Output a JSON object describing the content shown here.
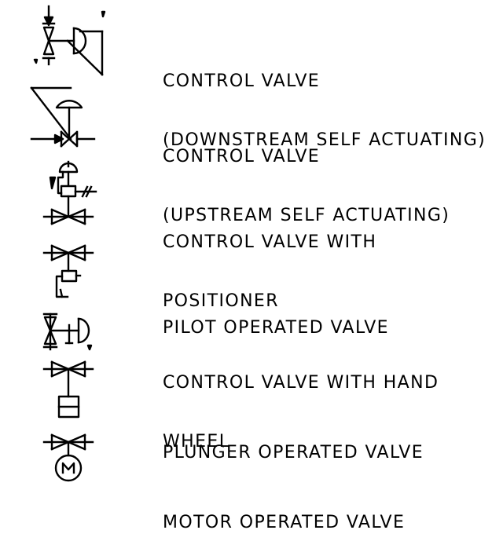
{
  "legend": [
    {
      "icon": "downstream-self-actuating-control-valve-icon",
      "lines": [
        "CONTROL VALVE",
        "(DOWNSTREAM SELF ACTUATING)"
      ]
    },
    {
      "icon": "upstream-self-actuating-control-valve-icon",
      "lines": [
        "CONTROL VALVE",
        "(UPSTREAM SELF ACTUATING)"
      ]
    },
    {
      "icon": "control-valve-with-positioner-icon",
      "lines": [
        "CONTROL VALVE WITH",
        "POSITIONER"
      ]
    },
    {
      "icon": "pilot-operated-valve-icon",
      "lines": [
        "PILOT OPERATED VALVE"
      ]
    },
    {
      "icon": "control-valve-with-hand-wheel-icon",
      "lines": [
        "CONTROL VALVE WITH HAND",
        "WHEEL"
      ]
    },
    {
      "icon": "plunger-operated-valve-icon",
      "lines": [
        "PLUNGER OPERATED VALVE"
      ]
    },
    {
      "icon": "motor-operated-valve-icon",
      "lines": [
        "MOTOR OPERATED VALVE"
      ],
      "motor_letter": "M"
    }
  ],
  "colors": {
    "ink": "#000000",
    "background": "#ffffff"
  }
}
